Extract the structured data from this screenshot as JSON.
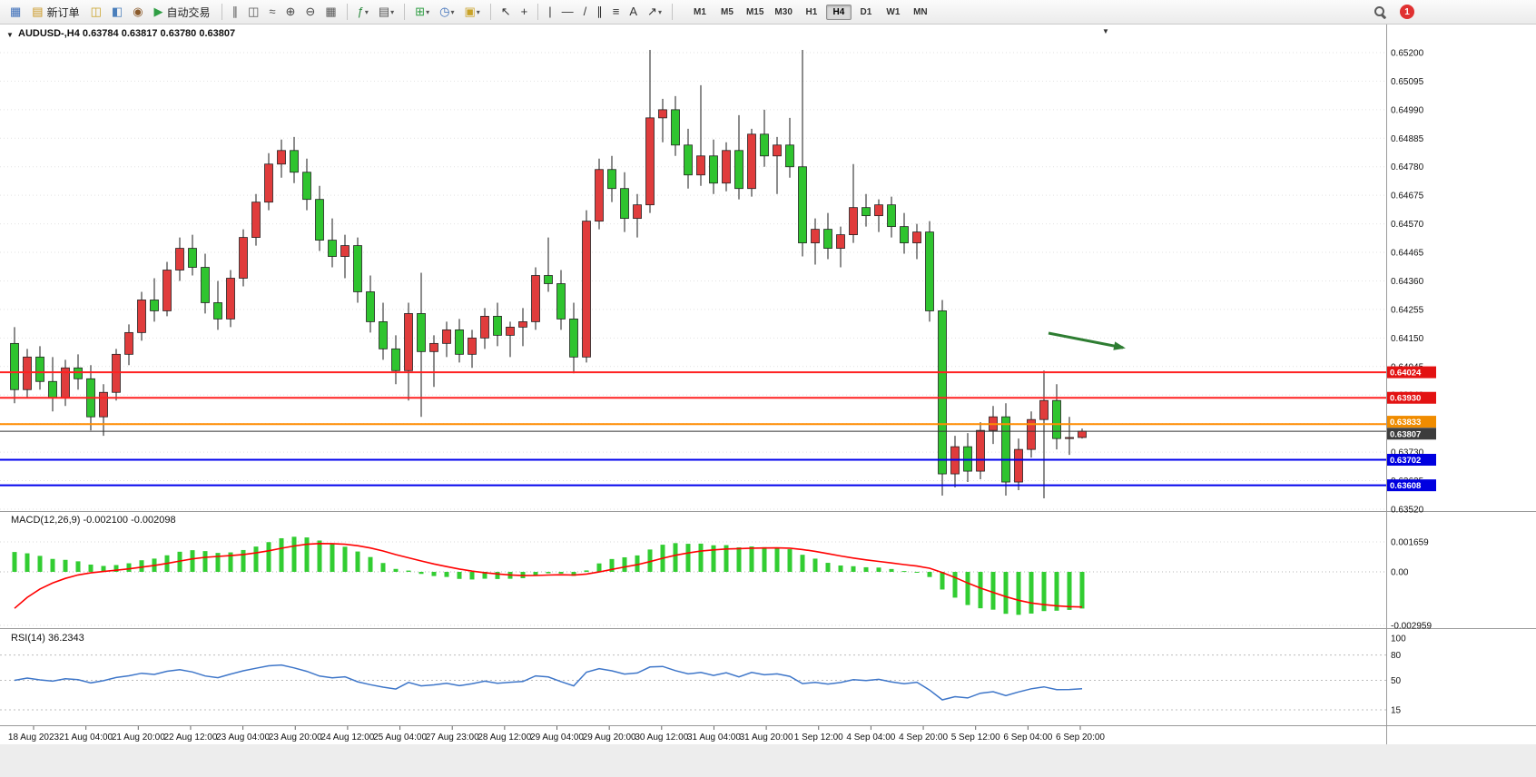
{
  "toolbar": {
    "items": [
      {
        "kind": "icon",
        "name": "new-window-icon",
        "glyph": "▦",
        "color": "#3b6db8"
      },
      {
        "kind": "button",
        "name": "new-order-button",
        "icon_glyph": "▤",
        "icon_color": "#c9951d",
        "label": "新订单"
      },
      {
        "kind": "icon",
        "name": "market-watch-icon",
        "glyph": "◫",
        "color": "#c9a227"
      },
      {
        "kind": "icon",
        "name": "navigator-icon",
        "glyph": "◧",
        "color": "#4a7ebb"
      },
      {
        "kind": "icon",
        "name": "terminal-icon",
        "glyph": "◉",
        "color": "#8a5a2b"
      },
      {
        "kind": "button",
        "name": "auto-trading-button",
        "icon_glyph": "▶",
        "icon_color": "#2f9e44",
        "label": "自动交易"
      },
      {
        "kind": "sep"
      },
      {
        "kind": "icon",
        "name": "bar-chart-mode-icon",
        "glyph": "∥",
        "color": "#555555"
      },
      {
        "kind": "icon",
        "name": "candlestick-mode-icon",
        "glyph": "◫",
        "color": "#555555"
      },
      {
        "kind": "icon",
        "name": "line-chart-mode-icon",
        "glyph": "≈",
        "color": "#555555"
      },
      {
        "kind": "icon",
        "name": "zoom-in-icon",
        "glyph": "⊕",
        "color": "#444444"
      },
      {
        "kind": "icon",
        "name": "zoom-out-icon",
        "glyph": "⊖",
        "color": "#444444"
      },
      {
        "kind": "icon",
        "name": "tile-windows-icon",
        "glyph": "▦",
        "color": "#555555"
      },
      {
        "kind": "sep"
      },
      {
        "kind": "icon",
        "name": "indicators-icon",
        "glyph": "ƒ",
        "color": "#2b8a3e",
        "caret": true
      },
      {
        "kind": "icon",
        "name": "indicator-list-icon",
        "glyph": "▤",
        "color": "#555555",
        "caret": true
      },
      {
        "kind": "sep"
      },
      {
        "kind": "icon",
        "name": "new-chart-icon",
        "glyph": "⊞",
        "color": "#2f9e44",
        "caret": true
      },
      {
        "kind": "icon",
        "name": "period-menu-icon",
        "glyph": "◷",
        "color": "#3b6db8",
        "caret": true
      },
      {
        "kind": "icon",
        "name": "template-menu-icon",
        "glyph": "▣",
        "color": "#c9a227",
        "caret": true
      },
      {
        "kind": "sep"
      },
      {
        "kind": "icon",
        "name": "cursor-tool-icon",
        "glyph": "↖",
        "color": "#333333"
      },
      {
        "kind": "icon",
        "name": "crosshair-tool-icon",
        "glyph": "+",
        "color": "#333333"
      },
      {
        "kind": "sep"
      },
      {
        "kind": "icon",
        "name": "vertical-line-tool-icon",
        "glyph": "|",
        "color": "#333333"
      },
      {
        "kind": "icon",
        "name": "horizontal-line-tool-icon",
        "glyph": "—",
        "color": "#333333"
      },
      {
        "kind": "icon",
        "name": "trendline-tool-icon",
        "glyph": "/",
        "color": "#333333"
      },
      {
        "kind": "icon",
        "name": "channel-tool-icon",
        "glyph": "∥",
        "color": "#333333"
      },
      {
        "kind": "icon",
        "name": "fibonacci-tool-icon",
        "glyph": "≡",
        "color": "#333333"
      },
      {
        "kind": "icon",
        "name": "text-tool-icon",
        "glyph": "A",
        "color": "#333333"
      },
      {
        "kind": "icon",
        "name": "arrows-tool-icon",
        "glyph": "↗",
        "color": "#333333",
        "caret": true
      },
      {
        "kind": "sep"
      }
    ],
    "timeframes": {
      "options": [
        "M1",
        "M5",
        "M15",
        "M30",
        "H1",
        "H4",
        "D1",
        "W1",
        "MN"
      ],
      "active": "H4"
    },
    "notification_count": "1"
  },
  "chart_window": {
    "title_line": "AUDUSD-,H4  0.63784 0.63817 0.63780 0.63807",
    "one_click_toggle_glyph": "▼",
    "collapse_marker_glyph": "▼"
  },
  "chart_data": {
    "type": "candlestick",
    "symbol": "AUDUSD-",
    "timeframe": "H4",
    "ohlc_current": {
      "open": "0.63784",
      "high": "0.63817",
      "low": "0.63780",
      "close": "0.63807"
    },
    "price_axis": {
      "top_value": 0.652,
      "bottom_value": 0.6352,
      "ticks": [
        "0.65200",
        "0.65095",
        "0.64990",
        "0.64885",
        "0.64780",
        "0.64675",
        "0.64570",
        "0.64465",
        "0.64360",
        "0.64255",
        "0.64150",
        "0.64045",
        "0.63940",
        "0.63835",
        "0.63730",
        "0.63625",
        "0.63520"
      ]
    },
    "time_axis": {
      "labels": [
        "18 Aug 2023",
        "21 Aug 04:00",
        "21 Aug 20:00",
        "22 Aug 12:00",
        "23 Aug 04:00",
        "23 Aug 20:00",
        "24 Aug 12:00",
        "25 Aug 04:00",
        "27 Aug 23:00",
        "28 Aug 12:00",
        "29 Aug 04:00",
        "29 Aug 20:00",
        "30 Aug 12:00",
        "31 Aug 04:00",
        "31 Aug 20:00",
        "1 Sep 12:00",
        "4 Sep 04:00",
        "4 Sep 20:00",
        "5 Sep 12:00",
        "6 Sep 04:00",
        "6 Sep 20:00"
      ]
    },
    "candles": [
      [
        0.6413,
        0.6419,
        0.6391,
        0.6396
      ],
      [
        0.6396,
        0.6411,
        0.6393,
        0.6408
      ],
      [
        0.6408,
        0.6412,
        0.6396,
        0.6399
      ],
      [
        0.6399,
        0.6408,
        0.6388,
        0.6393
      ],
      [
        0.6393,
        0.6407,
        0.639,
        0.6404
      ],
      [
        0.6404,
        0.6409,
        0.6396,
        0.64
      ],
      [
        0.64,
        0.6405,
        0.6381,
        0.6386
      ],
      [
        0.6386,
        0.6398,
        0.6379,
        0.6395
      ],
      [
        0.6395,
        0.6411,
        0.6392,
        0.6409
      ],
      [
        0.6409,
        0.642,
        0.6405,
        0.6417
      ],
      [
        0.6417,
        0.6432,
        0.6414,
        0.6429
      ],
      [
        0.6429,
        0.6437,
        0.6421,
        0.6425
      ],
      [
        0.6425,
        0.6443,
        0.6423,
        0.644
      ],
      [
        0.644,
        0.6452,
        0.6436,
        0.6448
      ],
      [
        0.6448,
        0.6453,
        0.6438,
        0.6441
      ],
      [
        0.6441,
        0.6446,
        0.6424,
        0.6428
      ],
      [
        0.6428,
        0.6436,
        0.6418,
        0.6422
      ],
      [
        0.6422,
        0.644,
        0.6419,
        0.6437
      ],
      [
        0.6437,
        0.6455,
        0.6434,
        0.6452
      ],
      [
        0.6452,
        0.6468,
        0.6449,
        0.6465
      ],
      [
        0.6465,
        0.6483,
        0.6462,
        0.6479
      ],
      [
        0.6479,
        0.6488,
        0.6474,
        0.6484
      ],
      [
        0.6484,
        0.6489,
        0.6472,
        0.6476
      ],
      [
        0.6476,
        0.6481,
        0.6462,
        0.6466
      ],
      [
        0.6466,
        0.6471,
        0.6447,
        0.6451
      ],
      [
        0.6451,
        0.6459,
        0.6441,
        0.6445
      ],
      [
        0.6445,
        0.6453,
        0.6437,
        0.6449
      ],
      [
        0.6449,
        0.6452,
        0.6428,
        0.6432
      ],
      [
        0.6432,
        0.6438,
        0.6417,
        0.6421
      ],
      [
        0.6421,
        0.6428,
        0.6407,
        0.6411
      ],
      [
        0.6411,
        0.6416,
        0.6398,
        0.6403
      ],
      [
        0.6403,
        0.6428,
        0.6392,
        0.6424
      ],
      [
        0.6424,
        0.6439,
        0.6386,
        0.641
      ],
      [
        0.641,
        0.6416,
        0.6397,
        0.6413
      ],
      [
        0.6413,
        0.6421,
        0.6408,
        0.6418
      ],
      [
        0.6418,
        0.6422,
        0.6406,
        0.6409
      ],
      [
        0.6409,
        0.6418,
        0.6404,
        0.6415
      ],
      [
        0.6415,
        0.6426,
        0.6411,
        0.6423
      ],
      [
        0.6423,
        0.6428,
        0.6412,
        0.6416
      ],
      [
        0.6416,
        0.6421,
        0.6408,
        0.6419
      ],
      [
        0.6419,
        0.6426,
        0.6412,
        0.6421
      ],
      [
        0.6421,
        0.6441,
        0.6418,
        0.6438
      ],
      [
        0.6438,
        0.6452,
        0.6432,
        0.6435
      ],
      [
        0.6435,
        0.644,
        0.6418,
        0.6422
      ],
      [
        0.6422,
        0.6428,
        0.6402,
        0.6408
      ],
      [
        0.6408,
        0.6462,
        0.6406,
        0.6458
      ],
      [
        0.6458,
        0.6481,
        0.6455,
        0.6477
      ],
      [
        0.6477,
        0.6482,
        0.6465,
        0.647
      ],
      [
        0.647,
        0.6476,
        0.6454,
        0.6459
      ],
      [
        0.6459,
        0.6468,
        0.6452,
        0.6464
      ],
      [
        0.6464,
        0.6521,
        0.6461,
        0.6496
      ],
      [
        0.6496,
        0.6503,
        0.6487,
        0.6499
      ],
      [
        0.6499,
        0.6504,
        0.6482,
        0.6486
      ],
      [
        0.6486,
        0.6492,
        0.647,
        0.6475
      ],
      [
        0.6475,
        0.6508,
        0.6471,
        0.6482
      ],
      [
        0.6482,
        0.6488,
        0.6468,
        0.6472
      ],
      [
        0.6472,
        0.6487,
        0.6469,
        0.6484
      ],
      [
        0.6484,
        0.6497,
        0.6466,
        0.647
      ],
      [
        0.647,
        0.6492,
        0.6467,
        0.649
      ],
      [
        0.649,
        0.6499,
        0.6478,
        0.6482
      ],
      [
        0.6482,
        0.6489,
        0.6468,
        0.6486
      ],
      [
        0.6486,
        0.6496,
        0.6474,
        0.6478
      ],
      [
        0.6478,
        0.6521,
        0.6445,
        0.645
      ],
      [
        0.645,
        0.6459,
        0.6442,
        0.6455
      ],
      [
        0.6455,
        0.6461,
        0.6444,
        0.6448
      ],
      [
        0.6448,
        0.6456,
        0.6441,
        0.6453
      ],
      [
        0.6453,
        0.6479,
        0.645,
        0.6463
      ],
      [
        0.6463,
        0.6468,
        0.6456,
        0.646
      ],
      [
        0.646,
        0.6466,
        0.6454,
        0.6464
      ],
      [
        0.6464,
        0.6467,
        0.6452,
        0.6456
      ],
      [
        0.6456,
        0.6461,
        0.6446,
        0.645
      ],
      [
        0.645,
        0.6457,
        0.6444,
        0.6454
      ],
      [
        0.6454,
        0.6458,
        0.6421,
        0.6425
      ],
      [
        0.6425,
        0.6429,
        0.6357,
        0.6365
      ],
      [
        0.6365,
        0.6379,
        0.636,
        0.6375
      ],
      [
        0.6375,
        0.638,
        0.6362,
        0.6366
      ],
      [
        0.6366,
        0.6384,
        0.6363,
        0.6381
      ],
      [
        0.6381,
        0.639,
        0.6376,
        0.6386
      ],
      [
        0.6386,
        0.6391,
        0.6357,
        0.6362
      ],
      [
        0.6362,
        0.6378,
        0.6359,
        0.6374
      ],
      [
        0.6374,
        0.6388,
        0.6371,
        0.6385
      ],
      [
        0.6385,
        0.6403,
        0.6356,
        0.6392
      ],
      [
        0.6392,
        0.6398,
        0.6374,
        0.6378
      ],
      [
        0.6378,
        0.6386,
        0.6372,
        0.63784
      ],
      [
        0.63784,
        0.63817,
        0.6378,
        0.63807
      ]
    ],
    "levels": [
      {
        "name": "resistance-line-upper",
        "price": 0.64024,
        "label": "0.64024",
        "color": "#ff2020",
        "width": 2,
        "box": "#e31212"
      },
      {
        "name": "resistance-line-lower",
        "price": 0.6393,
        "label": "0.63930",
        "color": "#ff2020",
        "width": 2,
        "box": "#e31212"
      },
      {
        "name": "orange-level-line",
        "price": 0.63833,
        "label": "0.63833",
        "color": "#ff8c00",
        "width": 2,
        "box": "#f08c00"
      },
      {
        "name": "bid-price-line",
        "price": 0.63807,
        "label": "0.63807",
        "color": "#333333",
        "width": 1,
        "box": "#3d3d3d"
      },
      {
        "name": "support-line-upper",
        "price": 0.63702,
        "label": "0.63702",
        "color": "#0000ee",
        "width": 2,
        "box": "#0000e0"
      },
      {
        "name": "support-line-lower",
        "price": 0.63608,
        "label": "0.63608",
        "color": "#0000ee",
        "width": 2,
        "box": "#0000e0"
      }
    ],
    "annotation_arrow": {
      "color": "#2e7d32"
    },
    "macd": {
      "label_line": "MACD(12,26,9) -0.002100 -0.002098",
      "params": [
        12,
        26,
        9
      ],
      "current_values": [
        "-0.002100",
        "-0.002098"
      ],
      "scale_labels": [
        "0.001659",
        "0.00",
        "-0.002959"
      ],
      "scale_values": [
        0.001659,
        0,
        -0.002959
      ],
      "histogram_color": "#32cd32",
      "signal_color": "#ff0000"
    },
    "rsi": {
      "label_line": "RSI(14) 36.2343",
      "period": 14,
      "current": 36.2343,
      "scale_labels": [
        "100",
        "80",
        "50",
        "15"
      ],
      "scale_values": [
        100,
        80,
        50,
        15
      ],
      "line_color": "#3e76c9"
    },
    "colors": {
      "up": "#e03c3c",
      "down": "#2fc42f",
      "wick": "#1a1a1a",
      "grid": "#e2e2e2",
      "background": "#ffffff"
    }
  }
}
